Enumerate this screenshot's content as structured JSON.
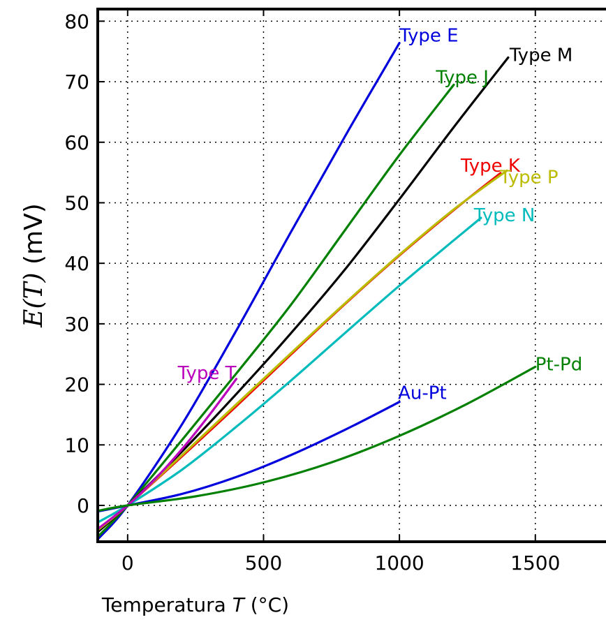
{
  "chart_data": {
    "type": "line",
    "xlabel_prefix": "Temperatura ",
    "xlabel_var": "T",
    "xlabel_suffix": " (°C)",
    "ylabel_math": "E(T)",
    "ylabel_unit": "(mV)",
    "xlim": [
      -110,
      1760
    ],
    "ylim": [
      -6,
      82
    ],
    "xticks": [
      0,
      500,
      1000,
      1500
    ],
    "yticks": [
      0,
      10,
      20,
      30,
      40,
      50,
      60,
      70,
      80
    ],
    "grid": true,
    "series": [
      {
        "name": "Type E",
        "color": "#0000dd",
        "x": [
          -110,
          0,
          200,
          400,
          600,
          800,
          1000
        ],
        "y": [
          -5.6,
          0,
          13.4,
          28.9,
          45.1,
          61.0,
          76.4
        ]
      },
      {
        "name": "Type J",
        "color": "#008000",
        "x": [
          -110,
          0,
          200,
          400,
          600,
          800,
          1000,
          1200
        ],
        "y": [
          -5.2,
          0,
          10.8,
          21.8,
          33.1,
          45.5,
          57.9,
          69.5
        ]
      },
      {
        "name": "Type M",
        "color": "#000000",
        "x": [
          -110,
          0,
          200,
          400,
          600,
          800,
          1000,
          1200,
          1400
        ],
        "y": [
          -4.4,
          0,
          8.9,
          18.4,
          28.4,
          39.0,
          50.6,
          62.5,
          74.0
        ]
      },
      {
        "name": "Type K",
        "color": "#ee0000",
        "x": [
          -110,
          0,
          200,
          400,
          600,
          800,
          1000,
          1200,
          1372
        ],
        "y": [
          -4.0,
          0,
          8.1,
          16.4,
          24.9,
          33.3,
          41.3,
          48.8,
          54.9
        ]
      },
      {
        "name": "Type P",
        "color": "#bbbb00",
        "x": [
          -110,
          0,
          200,
          400,
          600,
          800,
          1000,
          1200,
          1395
        ],
        "y": [
          -4.1,
          0,
          8.3,
          16.7,
          25.1,
          33.4,
          41.4,
          48.9,
          55.3
        ]
      },
      {
        "name": "Type N",
        "color": "#00bbbb",
        "x": [
          -110,
          0,
          200,
          400,
          600,
          800,
          1000,
          1200,
          1300
        ],
        "y": [
          -2.8,
          0,
          5.9,
          13.0,
          20.6,
          28.5,
          36.3,
          43.8,
          47.5
        ]
      },
      {
        "name": "Type T",
        "color": "#bb00bb",
        "x": [
          -110,
          0,
          100,
          200,
          300,
          400
        ],
        "y": [
          -3.9,
          0,
          4.3,
          9.3,
          14.9,
          20.9
        ]
      },
      {
        "name": "Au-Pt",
        "color": "#0000dd",
        "x": [
          -110,
          0,
          200,
          400,
          600,
          800,
          1000
        ],
        "y": [
          -1.0,
          0,
          1.9,
          4.7,
          8.3,
          12.5,
          17.1
        ]
      },
      {
        "name": "Pt-Pd",
        "color": "#008000",
        "x": [
          -110,
          0,
          250,
          500,
          750,
          1000,
          1250,
          1500
        ],
        "y": [
          -0.9,
          0,
          1.5,
          3.8,
          7.1,
          11.5,
          16.8,
          22.9
        ]
      }
    ]
  }
}
